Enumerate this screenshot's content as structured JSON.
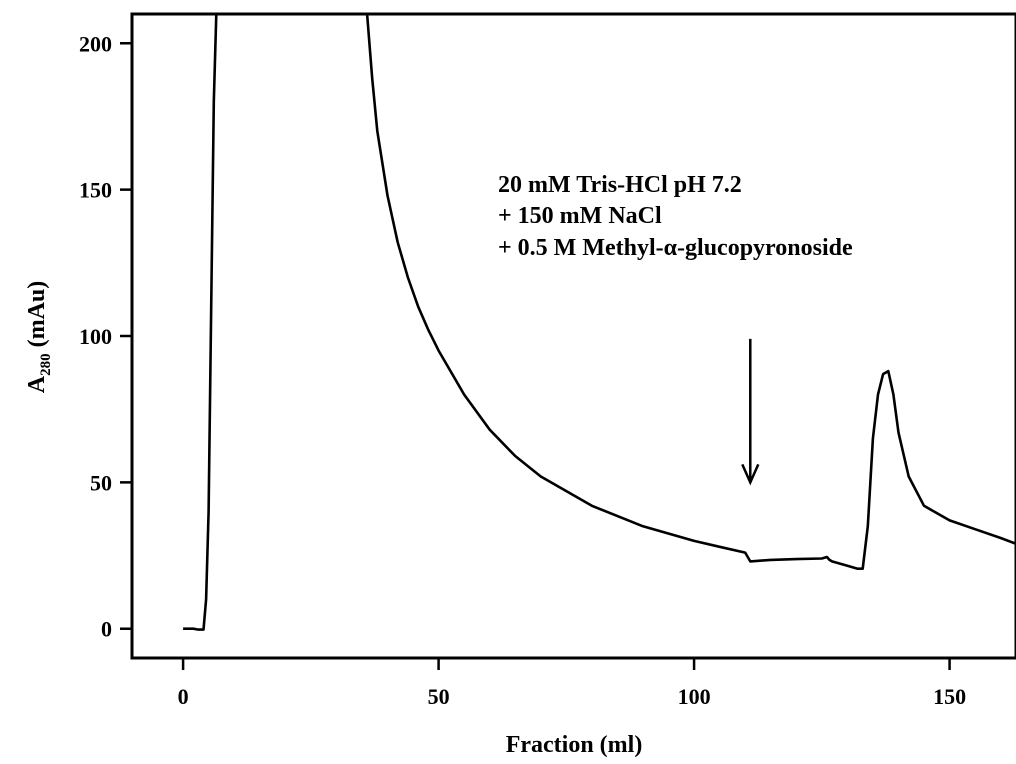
{
  "chart_data": {
    "type": "line",
    "xlabel": "Fraction (ml)",
    "ylabel": {
      "main": "A",
      "subscript": "280",
      "unit": " (mAu)"
    },
    "xlim": [
      -10,
      163
    ],
    "ylim": [
      -10,
      210
    ],
    "xticks": [
      0,
      50,
      100,
      150
    ],
    "yticks": [
      0,
      50,
      100,
      150,
      200
    ],
    "grid": false,
    "series": [
      {
        "name": "",
        "x": [
          0,
          1,
          2,
          3,
          4,
          4.5,
          5,
          5.5,
          6,
          6.5,
          36,
          37,
          38,
          40,
          42,
          44,
          46,
          48,
          50,
          55,
          60,
          65,
          70,
          80,
          90,
          100,
          105,
          110,
          111,
          115,
          120,
          125,
          126,
          126.5,
          127,
          130,
          132,
          133,
          134,
          135,
          136,
          137,
          138,
          139,
          140,
          142,
          145,
          150,
          155,
          160,
          163
        ],
        "y": [
          0,
          0,
          0,
          -0.3,
          -0.3,
          10,
          40,
          110,
          180,
          210,
          210,
          188,
          170,
          148,
          132,
          120,
          110,
          102,
          95,
          80,
          68,
          59,
          52,
          42,
          35,
          30,
          28,
          26,
          23,
          23.5,
          23.8,
          24,
          24.5,
          23.5,
          23,
          21.5,
          20.5,
          20.5,
          35,
          65,
          80,
          87,
          88,
          80,
          67,
          52,
          42,
          37,
          34,
          31,
          29
        ]
      }
    ],
    "annotations": [
      "20 mM Tris-HCl pH 7.2",
      "+ 150 mM NaCl",
      "+ 0.5 M Methyl-α-glucopyronoside"
    ],
    "arrow": {
      "x": 111,
      "y_from": 99,
      "y_to": 50
    }
  }
}
